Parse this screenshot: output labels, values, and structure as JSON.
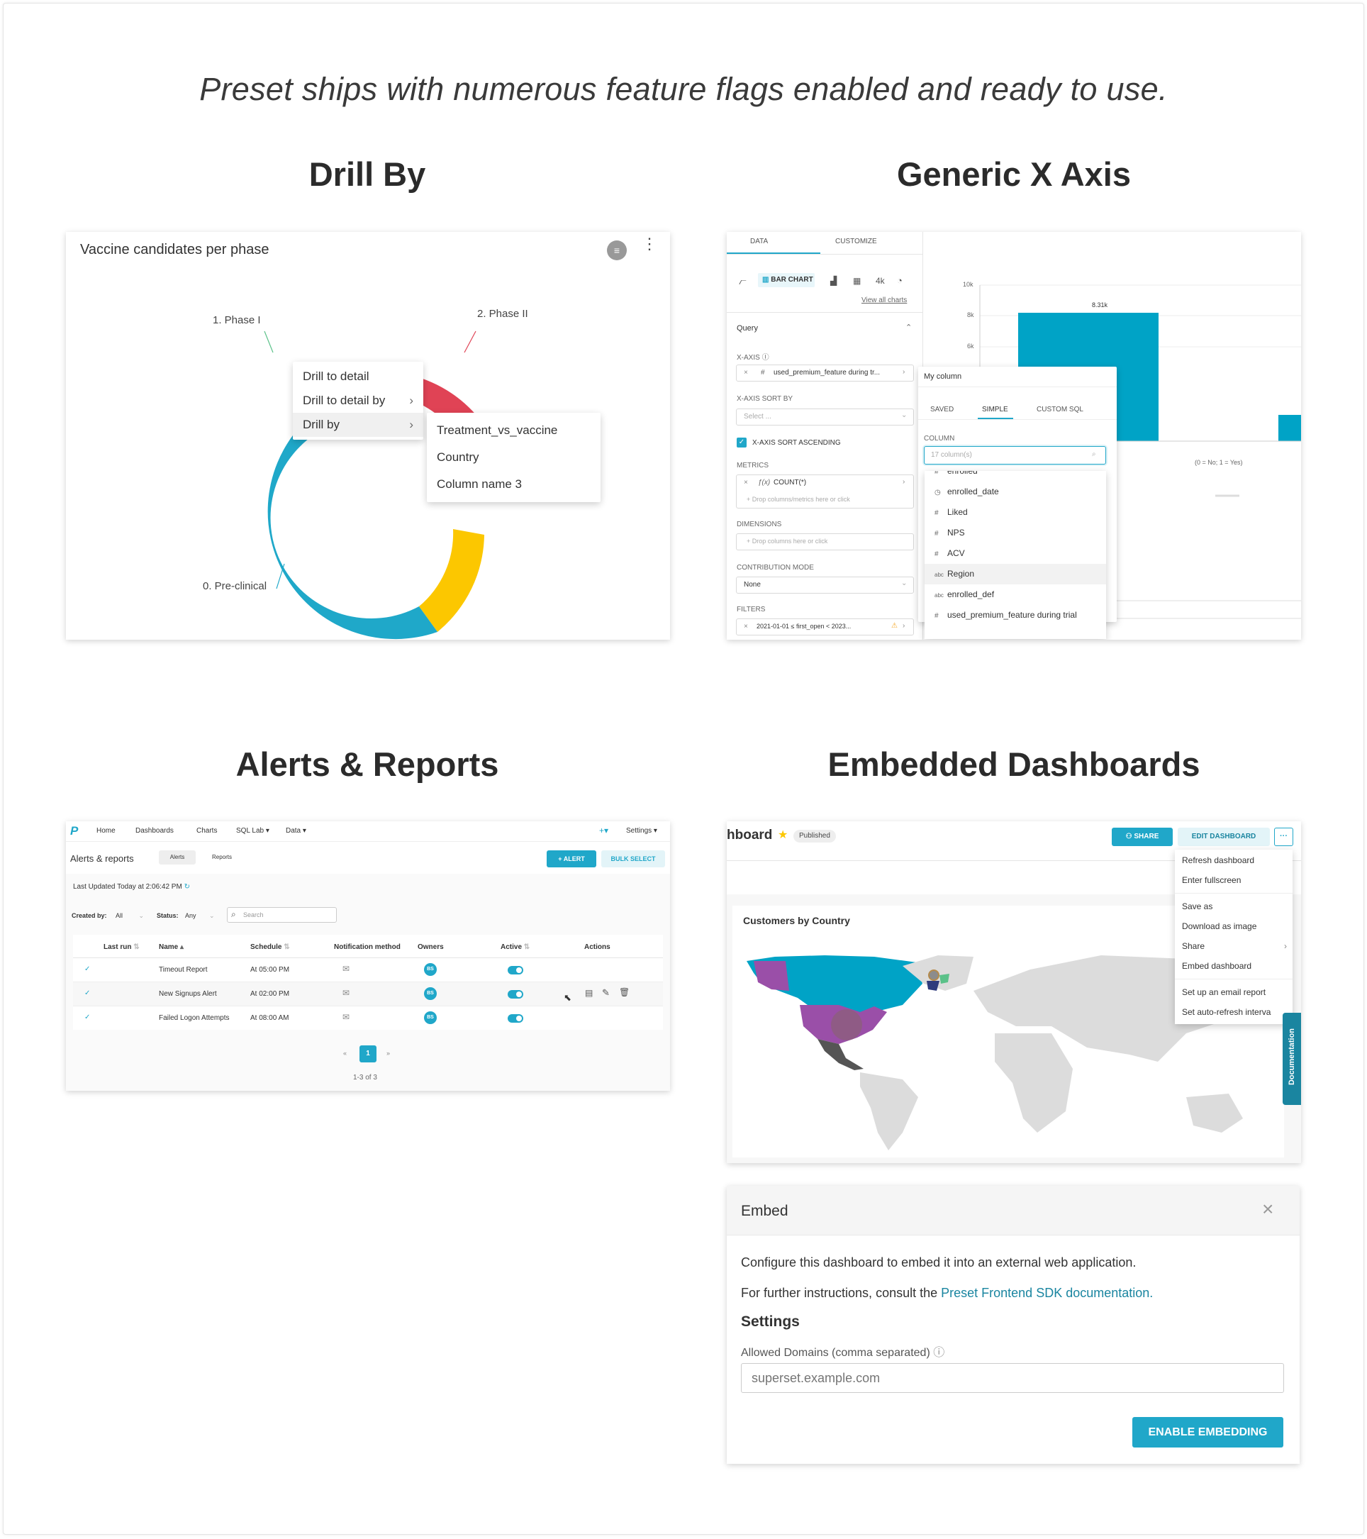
{
  "tagline": "Preset ships with numerous feature flags enabled and ready to use.",
  "sections": {
    "drill_by": "Drill By",
    "generic_x": "Generic X Axis",
    "alerts": "Alerts & Reports",
    "embedded": "Embedded Dashboards"
  },
  "drill": {
    "chart_title": "Vaccine candidates per phase",
    "labels": {
      "phase1": "1. Phase I",
      "phase2": "2. Phase II",
      "preclinical": "0. Pre-clinical"
    },
    "menu": [
      "Drill to detail",
      "Drill to detail by",
      "Drill by"
    ],
    "submenu": [
      "Treatment_vs_vaccine",
      "Country",
      "Column name 3"
    ],
    "colors": {
      "green": "#5ac189",
      "blue_light": "#66bcfe",
      "red": "#e04355",
      "teal": "#1fa8c9",
      "yellow": "#fcc700"
    }
  },
  "genx": {
    "tabs": [
      "DATA",
      "CUSTOMIZE"
    ],
    "chart_type": "BAR CHART",
    "chart_4k": "4k",
    "view_all": "View all charts",
    "query": "Query",
    "xaxis_label": "X-AXIS",
    "xaxis_value": "used_premium_feature during tr...",
    "sort_by": "X-AXIS SORT BY",
    "select_placeholder": "Select ...",
    "sort_asc": "X-AXIS SORT ASCENDING",
    "metrics": "METRICS",
    "metric_value": "COUNT(*)",
    "drop_metrics": "Drop columns/metrics here or click",
    "dimensions": "DIMENSIONS",
    "drop_dims": "Drop columns here or click",
    "contribution": "CONTRIBUTION MODE",
    "contribution_value": "None",
    "filters": "FILTERS",
    "filter_value": "2021-01-01 ≤ first_open < 2023...",
    "popover_title": "My column",
    "popover_tabs": [
      "SAVED",
      "SIMPLE",
      "CUSTOM SQL"
    ],
    "column_label": "COLUMN",
    "column_placeholder": "17 column(s)",
    "columns": [
      {
        "icon": "#",
        "name": "enrolled"
      },
      {
        "icon": "◷",
        "name": "enrolled_date"
      },
      {
        "icon": "#",
        "name": "Liked"
      },
      {
        "icon": "#",
        "name": "NPS"
      },
      {
        "icon": "#",
        "name": "ACV"
      },
      {
        "icon": "abc",
        "name": "Region"
      },
      {
        "icon": "abc",
        "name": "enrolled_def"
      },
      {
        "icon": "#",
        "name": "used_premium_feature during trial"
      }
    ],
    "y_ticks": [
      "10k",
      "8k",
      "6k"
    ],
    "bar_label": "8.31k",
    "x_caption": "(0 = No; 1 = Yes)",
    "bar_color": "#00a3c6"
  },
  "alerts": {
    "nav": [
      "Home",
      "Dashboards",
      "Charts",
      "SQL Lab ▾",
      "Data ▾"
    ],
    "plus": "+▾",
    "settings": "Settings ▾",
    "title": "Alerts & reports",
    "tabs": [
      "Alerts",
      "Reports"
    ],
    "btn_alert": "+ ALERT",
    "btn_bulk": "BULK SELECT",
    "updated": "Last Updated Today at 2:06:42 PM",
    "created_by": "Created by:",
    "created_val": "All",
    "status": "Status:",
    "status_val": "Any",
    "search": "Search",
    "columns": [
      "Last run",
      "Name",
      "Schedule",
      "Notification method",
      "Owners",
      "Active",
      "Actions"
    ],
    "rows": [
      {
        "name": "Timeout Report",
        "schedule": "At 05:00 PM",
        "owner": "BS"
      },
      {
        "name": "New Signups Alert",
        "schedule": "At 02:00 PM",
        "owner": "BS"
      },
      {
        "name": "Failed Logon Attempts",
        "schedule": "At 08:00 AM",
        "owner": "BS"
      }
    ],
    "page": "1",
    "prev": "«",
    "next": "»",
    "count": "1-3 of 3"
  },
  "embed": {
    "dash_title": "hboard",
    "published": "Published",
    "share": "SHARE",
    "edit": "EDIT DASHBOARD",
    "more": "···",
    "menu": [
      "Refresh dashboard",
      "Enter fullscreen",
      "Save as",
      "Download as image",
      "Share",
      "Embed dashboard",
      "Set up an email report",
      "Set auto-refresh interva"
    ],
    "map_title": "Customers by Country",
    "documentation": "Documentation",
    "modal_title": "Embed",
    "desc1": "Configure this dashboard to embed it into an external web application.",
    "desc2_prefix": "For further instructions, consult the ",
    "desc2_link": "Preset Frontend SDK documentation.",
    "settings": "Settings",
    "domains_label": "Allowed Domains (comma separated)",
    "domains_placeholder": "superset.example.com",
    "enable": "ENABLE EMBEDDING"
  }
}
